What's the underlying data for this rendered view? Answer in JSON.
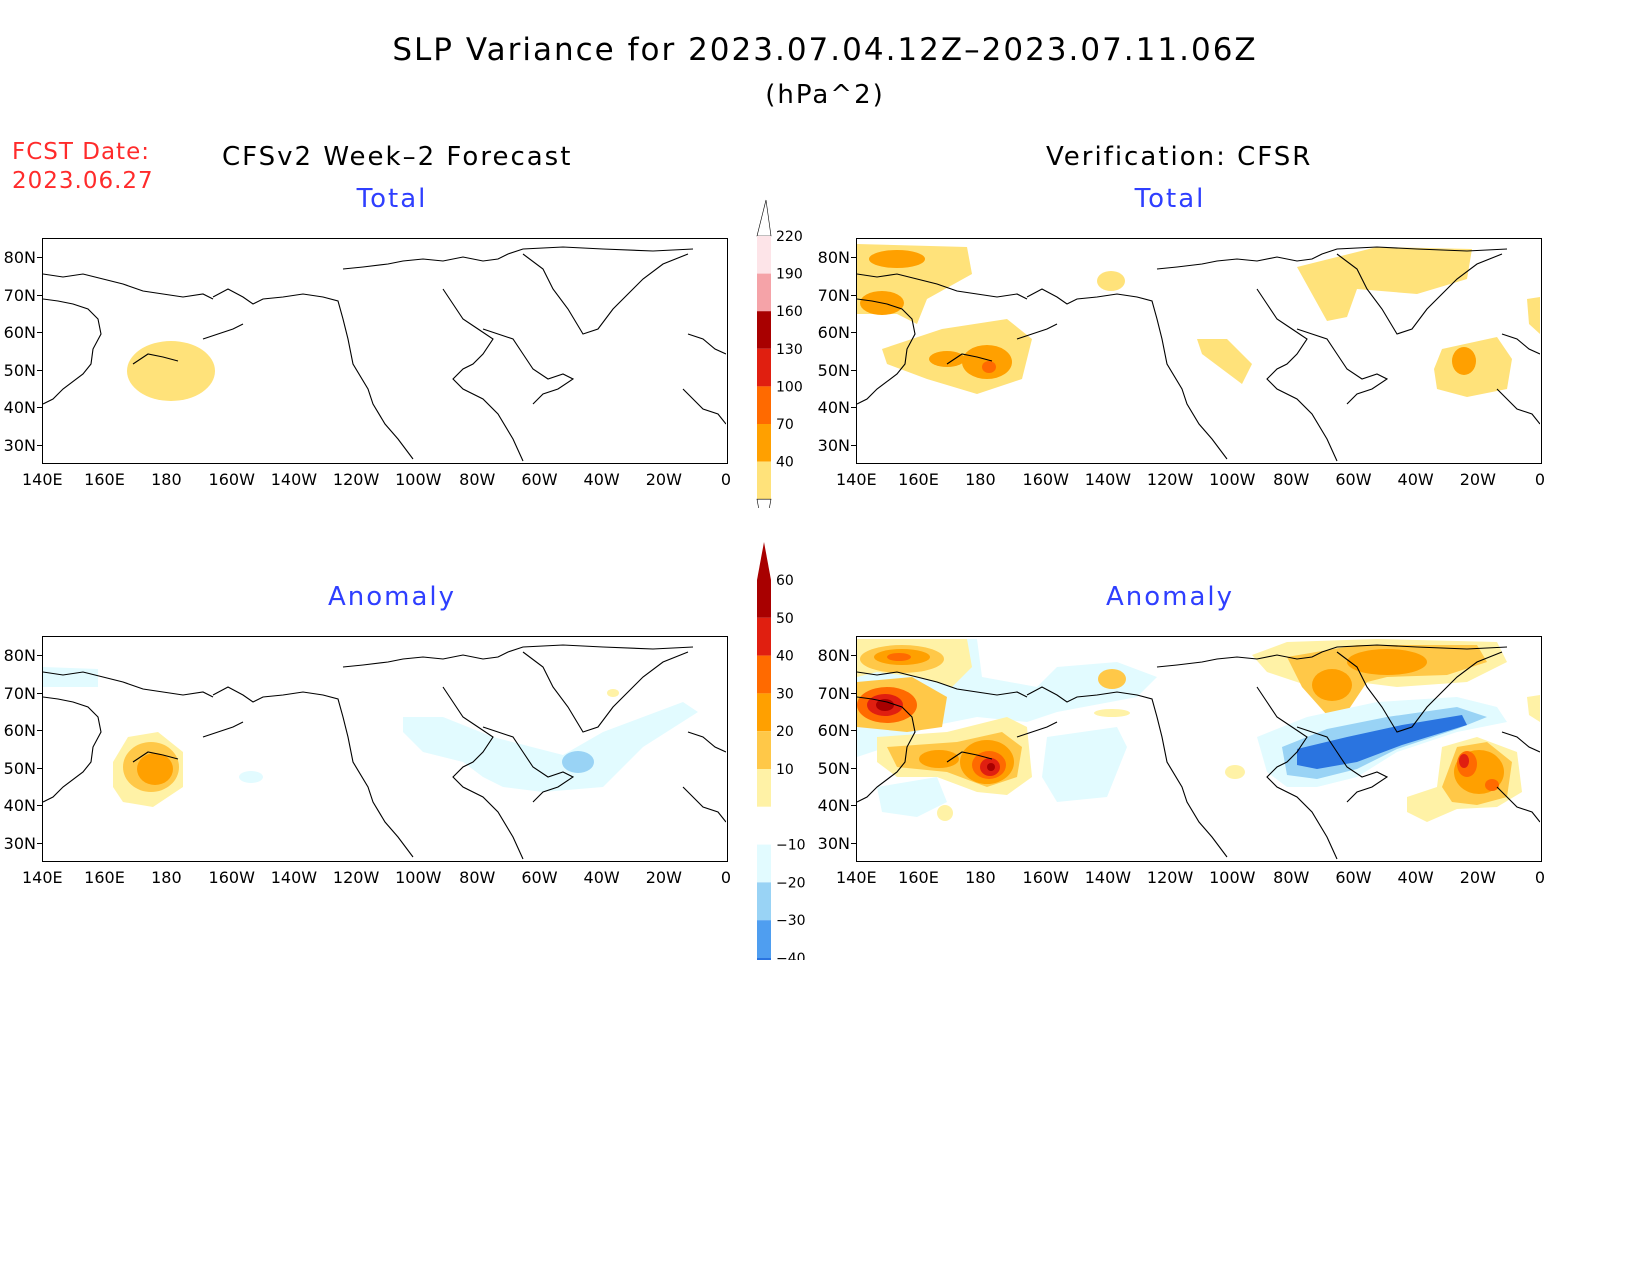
{
  "figure": {
    "title": "SLP Variance for 2023.07.04.12Z–2023.07.11.06Z",
    "units": "(hPa^2)",
    "fcst_label": "FCST Date:",
    "fcst_date": "2023.06.27",
    "col_left": "CFSv2 Week–2 Forecast",
    "col_right": "Verification: CFSR"
  },
  "panels": {
    "top_left": {
      "title": "Total"
    },
    "top_right": {
      "title": "Total"
    },
    "bottom_left": {
      "title": "Anomaly"
    },
    "bottom_right": {
      "title": "Anomaly"
    }
  },
  "axes": {
    "lon_labels": [
      "140E",
      "160E",
      "180",
      "160W",
      "140W",
      "120W",
      "100W",
      "80W",
      "60W",
      "40W",
      "20W",
      "0"
    ],
    "lat_labels": [
      "80N",
      "70N",
      "60N",
      "50N",
      "40N",
      "30N"
    ]
  },
  "colorbars": {
    "total": {
      "labels": [
        "220",
        "190",
        "160",
        "130",
        "100",
        "70",
        "40"
      ],
      "colors": [
        "#fde4e8",
        "#f5a3a8",
        "#a80000",
        "#e01f10",
        "#ff6a00",
        "#ffa000",
        "#ffe27a"
      ]
    },
    "anomaly": {
      "labels": [
        "60",
        "50",
        "40",
        "30",
        "20",
        "10",
        "−10",
        "−20",
        "−30",
        "−40"
      ],
      "colors_positive": [
        "#a80000",
        "#e01f10",
        "#ff6a00",
        "#ffa000",
        "#ffc848",
        "#fff2a6"
      ],
      "colors_negative": [
        "#e2fbff",
        "#99d3f5",
        "#4f9ef0",
        "#2a74e0"
      ]
    }
  }
}
